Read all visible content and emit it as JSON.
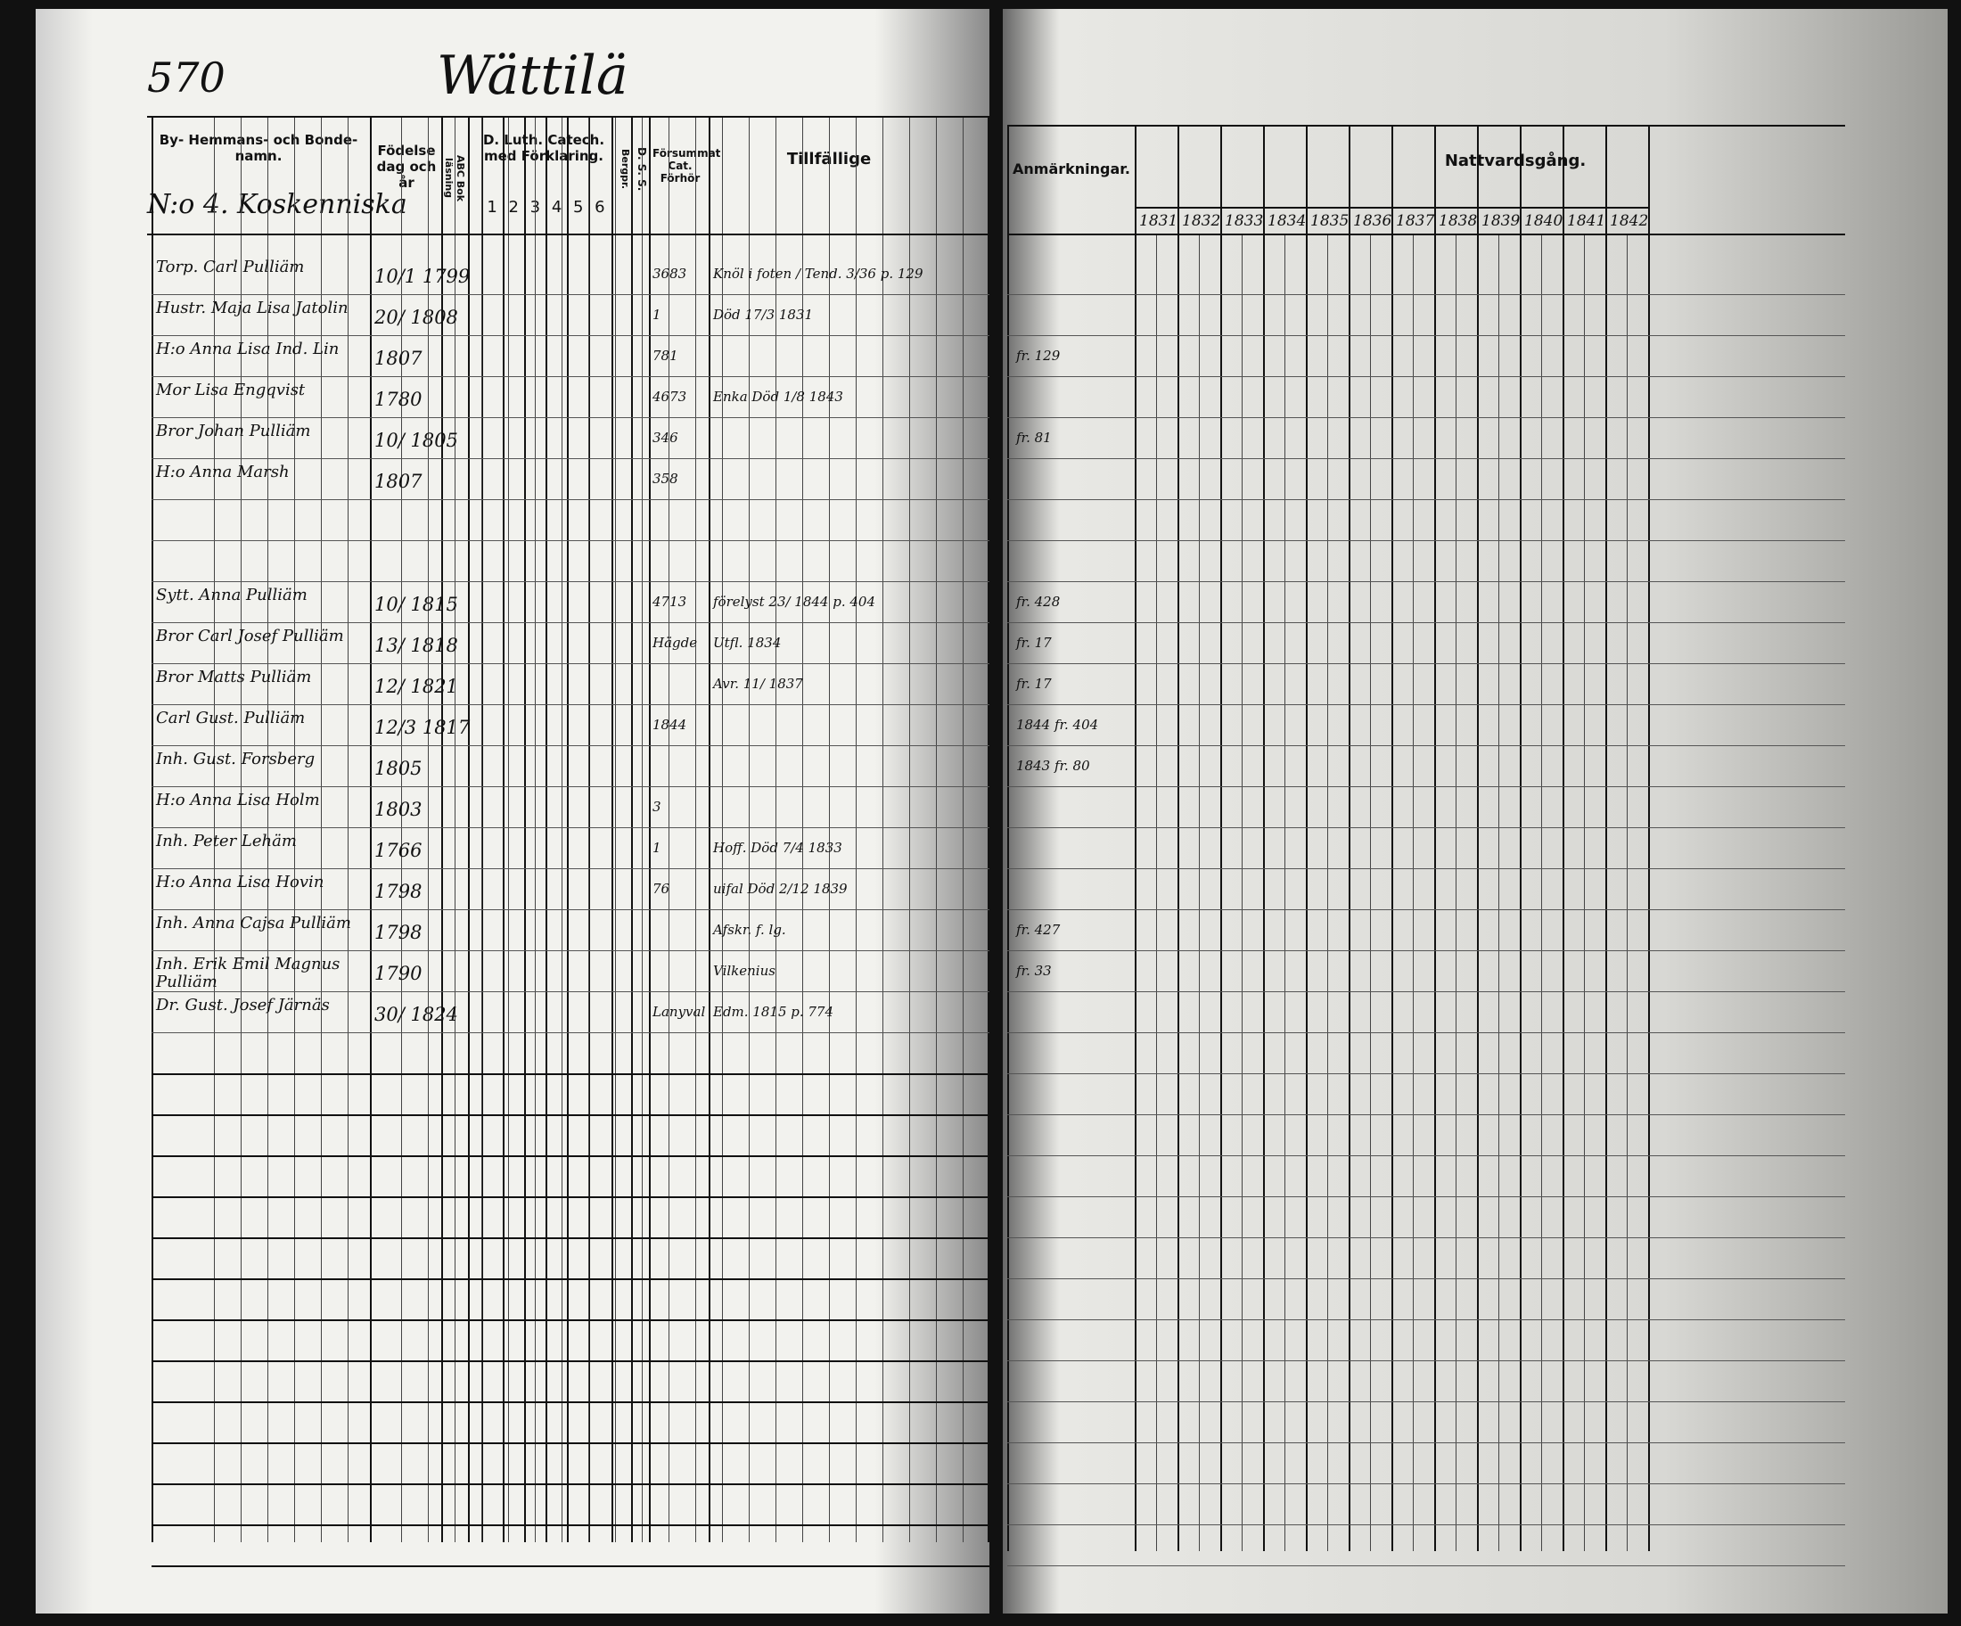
{
  "page_number": "570",
  "village": "Wättilä",
  "household": "N:o 4. Koskenniska",
  "headers": {
    "name": "By- Hemmans- och Bonde-namn.",
    "birth": "Födelse dag och år",
    "abc": "ABC Bok läsning",
    "catechism": "D. Luth. Catech. med Förklaring.",
    "catechism_cols": [
      "1",
      "2",
      "3",
      "4",
      "5",
      "6"
    ],
    "bergpr": "Bergpr.",
    "dss": "D. S. S.",
    "missed": "Försummat Cat. Förhör",
    "occasional": "Tillfällige",
    "remarks": "Anmärkningar.",
    "communion": "Nattvardsgång."
  },
  "communion_years": [
    "1831",
    "1832",
    "1833",
    "1834",
    "1835",
    "1836",
    "1837",
    "1838",
    "1839",
    "1840",
    "1841",
    "1842"
  ],
  "rows": [
    {
      "name": "Torp. Carl Pulliäm",
      "birth": "10/1 1799",
      "missed": "3683",
      "occasional": "Knöl i foten / Tend. 3/36 p. 129",
      "remarks": ""
    },
    {
      "name": "Hustr. Maja Lisa Jatolin",
      "birth": "20/ 1808",
      "missed": "1",
      "occasional": "Död 17/3 1831",
      "remarks": ""
    },
    {
      "name": "H:o Anna Lisa Ind. Lin",
      "birth": "1807",
      "missed": "781",
      "occasional": "",
      "remarks": "fr. 129"
    },
    {
      "name": "Mor Lisa Engqvist",
      "birth": "1780",
      "missed": "4673",
      "occasional": "Enka Död 1/8 1843",
      "remarks": ""
    },
    {
      "name": "Bror Johan Pulliäm",
      "birth": "10/ 1805",
      "missed": "346",
      "occasional": "",
      "remarks": "fr. 81"
    },
    {
      "name": "H:o Anna Marsh",
      "birth": "1807",
      "missed": "358",
      "occasional": "",
      "remarks": ""
    },
    {
      "name": "",
      "birth": "",
      "missed": "",
      "occasional": "",
      "remarks": ""
    },
    {
      "name": "",
      "birth": "",
      "missed": "",
      "occasional": "",
      "remarks": ""
    },
    {
      "name": "Sytt. Anna Pulliäm",
      "birth": "10/ 1815",
      "missed": "4713",
      "occasional": "förelyst 23/ 1844 p. 404",
      "remarks": "fr. 428"
    },
    {
      "name": "Bror Carl Josef Pulliäm",
      "birth": "13/ 1818",
      "missed": "Hägde",
      "occasional": "Utfl. 1834",
      "remarks": "fr. 17"
    },
    {
      "name": "Bror Matts Pulliäm",
      "birth": "12/ 1821",
      "missed": "",
      "occasional": "Avr. 11/ 1837",
      "remarks": "fr. 17"
    },
    {
      "name": "Carl Gust. Pulliäm",
      "birth": "12/3 1817",
      "missed": "1844",
      "occasional": "",
      "remarks": "1844 fr. 404"
    },
    {
      "name": "Inh. Gust. Forsberg",
      "birth": "1805",
      "missed": "",
      "occasional": "",
      "remarks": "1843 fr. 80"
    },
    {
      "name": "H:o Anna Lisa Holm",
      "birth": "1803",
      "missed": "3",
      "occasional": "",
      "remarks": ""
    },
    {
      "name": "Inh. Peter Lehäm",
      "birth": "1766",
      "missed": "1",
      "occasional": "Hoff. Död 7/4 1833",
      "remarks": ""
    },
    {
      "name": "H:o Anna Lisa Hovin",
      "birth": "1798",
      "missed": "76",
      "occasional": "uifal Död 2/12 1839",
      "remarks": ""
    },
    {
      "name": "Inh. Anna Cajsa Pulliäm",
      "birth": "1798",
      "missed": "",
      "occasional": "Afskr. f. lg.",
      "remarks": "fr. 427"
    },
    {
      "name": "Inh. Erik Emil Magnus Pulliäm",
      "birth": "1790",
      "missed": "",
      "occasional": "Vilkenius",
      "remarks": "fr. 33"
    },
    {
      "name": "Dr. Gust. Josef Järnäs",
      "birth": "30/ 1824",
      "missed": "Lanyval",
      "occasional": "Edm. 1815 p. 774",
      "remarks": ""
    }
  ],
  "colors": {
    "paper": "#ecebe6",
    "ink": "#111111",
    "background": "#111111"
  }
}
